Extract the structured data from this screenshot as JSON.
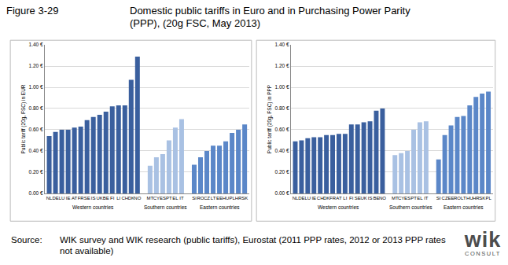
{
  "chart_data": {
    "type": "bar",
    "figure": "Figure 3-29",
    "title": [
      "Domestic public tariffs in Euro and in Purchasing Power Parity",
      "(PPP), (20g FSC, May 2013)"
    ],
    "source_label": "Source:",
    "source": "WIK survey and WIK research (public tariffs), Eurostat (2011 PPP rates, 2012 or 2013 PPP rates not available)",
    "brand": "wik",
    "brand_sub": "CONSULT",
    "grid": true,
    "ylim": [
      0,
      1.4
    ],
    "yticks": [
      {
        "value": 0,
        "label": "0.00 €"
      },
      {
        "value": 0.2,
        "label": "0.20 €"
      },
      {
        "value": 0.4,
        "label": "0.40 €"
      },
      {
        "value": 0.6,
        "label": "0.60 €"
      },
      {
        "value": 0.8,
        "label": "0.80 €"
      },
      {
        "value": 1.0,
        "label": "1.00 €"
      },
      {
        "value": 1.2,
        "label": "1.20 €"
      },
      {
        "value": 1.4,
        "label": "1.40 €"
      }
    ],
    "panels": [
      {
        "y_label": "Public tariff (20g, FSC) in EUR",
        "groups": [
          {
            "name": "Western countries",
            "color": "#3a5f9e",
            "categories": [
              "NL",
              "DE",
              "LU",
              "IE",
              "AT",
              "FR",
              "SE",
              "IS",
              "UK",
              "BE",
              "FI",
              "LI",
              "CH",
              "DK",
              "NO"
            ],
            "values": [
              0.54,
              0.58,
              0.6,
              0.6,
              0.62,
              0.63,
              0.69,
              0.72,
              0.74,
              0.77,
              0.82,
              0.83,
              0.83,
              1.07,
              1.29
            ]
          },
          {
            "name": "Southern countries",
            "color": "#a9c1e3",
            "categories": [
              "MT",
              "CY",
              "ES",
              "PT",
              "EL",
              "IT"
            ],
            "values": [
              0.26,
              0.34,
              0.37,
              0.5,
              0.62,
              0.7
            ]
          },
          {
            "name": "Eastern countries",
            "color": "#5b87c8",
            "categories": [
              "SI",
              "RO",
              "CZ",
              "LT",
              "EE",
              "HU",
              "PL",
              "HR",
              "SK"
            ],
            "values": [
              0.27,
              0.34,
              0.4,
              0.45,
              0.45,
              0.49,
              0.57,
              0.6,
              0.65
            ]
          }
        ]
      },
      {
        "y_label": "Public tariff (20g, FSC) in PPP",
        "groups": [
          {
            "name": "Western countries",
            "color": "#3a5f9e",
            "categories": [
              "NL",
              "DE",
              "LU",
              "IE",
              "CH",
              "DK",
              "FR",
              "AT",
              "LI",
              "FI",
              "SE",
              "UK",
              "IS",
              "BE",
              "NO"
            ],
            "values": [
              0.49,
              0.5,
              0.52,
              0.53,
              0.53,
              0.55,
              0.55,
              0.56,
              0.56,
              0.65,
              0.65,
              0.67,
              0.68,
              0.78,
              0.8
            ]
          },
          {
            "name": "Southern countries",
            "color": "#a9c1e3",
            "categories": [
              "MT",
              "CY",
              "ES",
              "PT",
              "EL",
              "IT"
            ],
            "values": [
              0.36,
              0.38,
              0.4,
              0.6,
              0.67,
              0.68
            ]
          },
          {
            "name": "Eastern countries",
            "color": "#5b87c8",
            "categories": [
              "SI",
              "CZ",
              "EE",
              "RO",
              "LT",
              "HU",
              "HR",
              "SK",
              "PL"
            ],
            "values": [
              0.32,
              0.55,
              0.64,
              0.72,
              0.73,
              0.83,
              0.91,
              0.94,
              0.96
            ]
          }
        ]
      }
    ]
  }
}
